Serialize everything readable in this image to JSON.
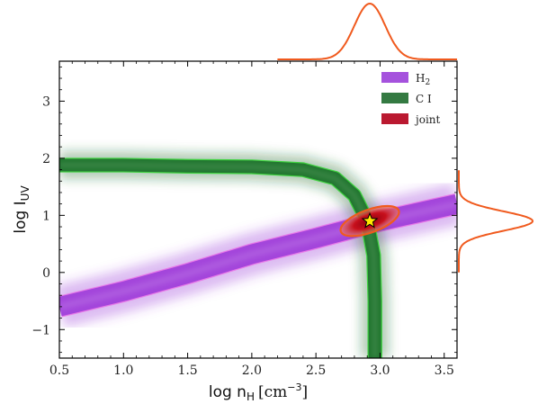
{
  "chart_data": {
    "type": "contour-density",
    "xlabel": "log n_H [cm^-3]",
    "xlabel_main": "log n",
    "xlabel_sub": "H",
    "xlabel_unit": "[cm",
    "xlabel_exp": "−3",
    "xlabel_close": "]",
    "ylabel": "log I_UV",
    "ylabel_main": "log I",
    "ylabel_sub": "UV",
    "xlim": [
      0.5,
      3.6
    ],
    "ylim": [
      -1.5,
      3.7
    ],
    "xticks": [
      0.5,
      1.0,
      1.5,
      2.0,
      2.5,
      3.0,
      3.5
    ],
    "xtick_labels": [
      "0.5",
      "1.0",
      "1.5",
      "2.0",
      "2.5",
      "3.0",
      "3.5"
    ],
    "yticks": [
      -1,
      0,
      1,
      2,
      3
    ],
    "ytick_labels": [
      "−1",
      "0",
      "1",
      "2",
      "3"
    ],
    "legend_position": "top-right",
    "series": [
      {
        "name": "H2",
        "label_main": "H",
        "label_sub": "2",
        "color": "#9b3fd9",
        "edge_color": "#e879e8",
        "ridge": [
          [
            0.5,
            -0.6
          ],
          [
            1.0,
            -0.33
          ],
          [
            1.5,
            -0.02
          ],
          [
            2.0,
            0.32
          ],
          [
            2.5,
            0.6
          ],
          [
            3.0,
            0.9
          ],
          [
            3.6,
            1.2
          ]
        ],
        "width": 0.34
      },
      {
        "name": "C I",
        "color": "#1e6b2e",
        "edge_color": "#3fd43f",
        "ridge": [
          [
            0.5,
            1.88
          ],
          [
            1.0,
            1.88
          ],
          [
            1.5,
            1.86
          ],
          [
            2.0,
            1.85
          ],
          [
            2.4,
            1.8
          ],
          [
            2.65,
            1.65
          ],
          [
            2.8,
            1.35
          ],
          [
            2.9,
            0.9
          ],
          [
            2.95,
            0.3
          ],
          [
            2.96,
            -0.5
          ],
          [
            2.96,
            -1.5
          ]
        ],
        "width": 0.22
      },
      {
        "name": "joint",
        "color": "#b3001a",
        "edge_color": "#f05a1e",
        "center": [
          2.92,
          0.9
        ],
        "rx": 0.24,
        "ry": 0.2,
        "tilt_deg": -20
      }
    ],
    "best_fit": {
      "x": 2.92,
      "y": 0.9,
      "marker": "star",
      "color": "#ffe600"
    },
    "marginal_x": {
      "mean": 2.92,
      "sigma": 0.12,
      "color": "#f05a1e"
    },
    "marginal_y": {
      "mean": 0.9,
      "sigma": 0.17,
      "color": "#f05a1e"
    }
  }
}
